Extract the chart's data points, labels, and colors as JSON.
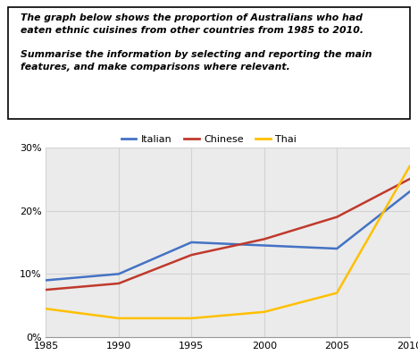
{
  "title_line1": "The graph below shows the proportion of Australians who had",
  "title_line2": "eaten ethnic cuisines from other countries from 1985 to 2010.",
  "title_line3": "",
  "title_line4": "Summarise the information by selecting and reporting the main",
  "title_line5": "features, and make comparisons where relevant.",
  "years": [
    1985,
    1990,
    1995,
    2000,
    2005,
    2010
  ],
  "italian": [
    9,
    10,
    15,
    14.5,
    14,
    23
  ],
  "chinese": [
    7.5,
    8.5,
    13,
    15.5,
    19,
    25
  ],
  "thai": [
    4.5,
    3,
    3,
    4,
    7,
    27
  ],
  "italian_color": "#4472C4",
  "chinese_color": "#C0392B",
  "thai_color": "#FFC000",
  "ylim": [
    0,
    30
  ],
  "yticks": [
    0,
    10,
    20,
    30
  ],
  "ytick_labels": [
    "0%",
    "10%",
    "20%",
    "30%"
  ],
  "xticks": [
    1985,
    1990,
    1995,
    2000,
    2005,
    2010
  ],
  "grid_color": "#D3D3D3",
  "background_color": "#EBEBEB",
  "legend_labels": [
    "Italian",
    "Chinese",
    "Thai"
  ]
}
